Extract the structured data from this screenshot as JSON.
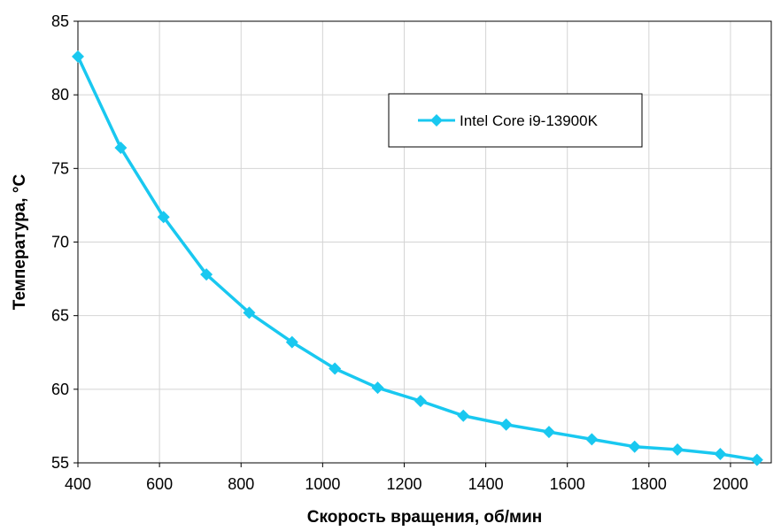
{
  "chart_data": {
    "type": "line",
    "xlabel": "Скорость вращения, об/мин",
    "ylabel": "Температура, °С",
    "xlim": [
      400,
      2100
    ],
    "ylim": [
      55,
      85
    ],
    "x_ticks": [
      400,
      600,
      800,
      1000,
      1200,
      1400,
      1600,
      1800,
      2000
    ],
    "y_ticks": [
      55,
      60,
      65,
      70,
      75,
      80,
      85
    ],
    "grid": true,
    "legend_position": "top-right",
    "series": [
      {
        "name": "Intel Core i9-13900K",
        "color": "#19c8f0",
        "marker": "diamond",
        "x": [
          400,
          505,
          610,
          715,
          820,
          925,
          1030,
          1135,
          1240,
          1345,
          1450,
          1555,
          1660,
          1765,
          1870,
          1975,
          2065
        ],
        "y": [
          82.6,
          76.4,
          71.7,
          67.8,
          65.2,
          63.2,
          61.4,
          60.1,
          59.2,
          58.2,
          57.6,
          57.1,
          56.6,
          56.1,
          55.9,
          55.6,
          55.2
        ]
      }
    ]
  }
}
